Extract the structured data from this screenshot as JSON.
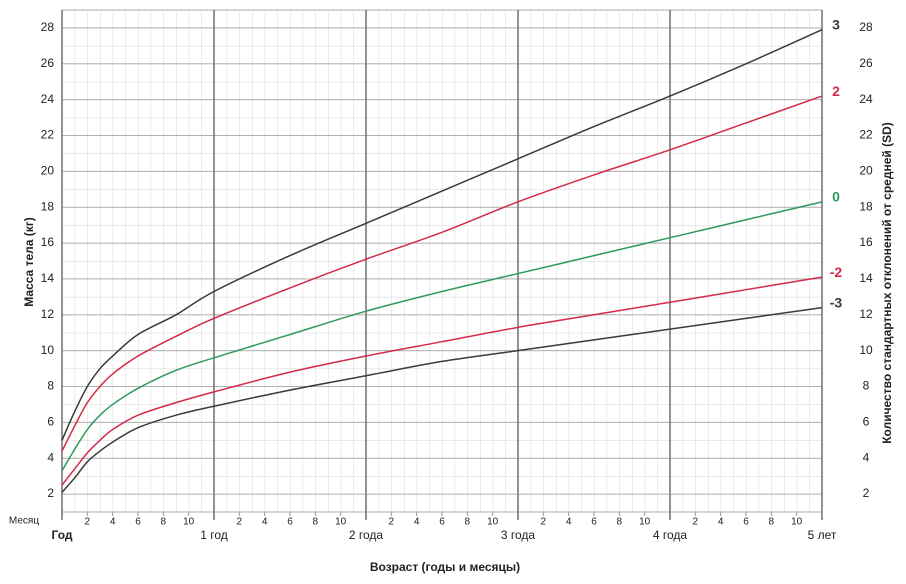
{
  "chart_data": {
    "type": "line",
    "y_label": "Масса тела (кг)",
    "y2_label": "Количество стандартных отклонений от средней (SD)",
    "x_label": "Возраст (годы и месяцы)",
    "x_row_label": "Месяц",
    "xlim": [
      0,
      60
    ],
    "ylim": [
      1,
      29
    ],
    "yticks": [
      2,
      4,
      6,
      8,
      10,
      12,
      14,
      16,
      18,
      20,
      22,
      24,
      26,
      28
    ],
    "xticks": [
      {
        "value": 2,
        "label": "2"
      },
      {
        "value": 4,
        "label": "4"
      },
      {
        "value": 6,
        "label": "6"
      },
      {
        "value": 8,
        "label": "8"
      },
      {
        "value": 10,
        "label": "10"
      },
      {
        "value": 14,
        "label": "2"
      },
      {
        "value": 16,
        "label": "4"
      },
      {
        "value": 18,
        "label": "6"
      },
      {
        "value": 20,
        "label": "8"
      },
      {
        "value": 22,
        "label": "10"
      },
      {
        "value": 26,
        "label": "2"
      },
      {
        "value": 28,
        "label": "4"
      },
      {
        "value": 30,
        "label": "6"
      },
      {
        "value": 32,
        "label": "8"
      },
      {
        "value": 34,
        "label": "10"
      },
      {
        "value": 38,
        "label": "2"
      },
      {
        "value": 40,
        "label": "4"
      },
      {
        "value": 42,
        "label": "6"
      },
      {
        "value": 44,
        "label": "8"
      },
      {
        "value": 46,
        "label": "10"
      },
      {
        "value": 50,
        "label": "2"
      },
      {
        "value": 52,
        "label": "4"
      },
      {
        "value": 54,
        "label": "6"
      },
      {
        "value": 56,
        "label": "8"
      },
      {
        "value": 58,
        "label": "10"
      }
    ],
    "year_ticks": [
      {
        "value": 0,
        "label": "Год"
      },
      {
        "value": 12,
        "label": "1 год"
      },
      {
        "value": 24,
        "label": "2 года"
      },
      {
        "value": 36,
        "label": "3 года"
      },
      {
        "value": 48,
        "label": "4 года"
      },
      {
        "value": 60,
        "label": "5 лет"
      }
    ],
    "grid": true,
    "x": [
      0,
      1,
      2,
      3,
      4,
      6,
      9,
      12,
      18,
      24,
      30,
      36,
      42,
      48,
      54,
      60
    ],
    "series": [
      {
        "name": "3",
        "color": "#3a3a3a",
        "values": [
          5.0,
          6.6,
          8.0,
          9.0,
          9.7,
          10.9,
          12.0,
          13.3,
          15.3,
          17.1,
          18.9,
          20.7,
          22.5,
          24.2,
          26.0,
          27.9
        ]
      },
      {
        "name": "2",
        "color": "#d42a48",
        "values": [
          4.4,
          5.8,
          7.1,
          8.0,
          8.7,
          9.7,
          10.8,
          11.8,
          13.5,
          15.1,
          16.6,
          18.3,
          19.8,
          21.2,
          22.7,
          24.2
        ]
      },
      {
        "name": "0",
        "color": "#2e9a5c",
        "values": [
          3.3,
          4.5,
          5.6,
          6.4,
          7.0,
          7.9,
          8.9,
          9.6,
          10.9,
          12.2,
          13.3,
          14.3,
          15.3,
          16.3,
          17.3,
          18.3
        ]
      },
      {
        "name": "-2",
        "color": "#d42a48",
        "values": [
          2.5,
          3.4,
          4.3,
          5.0,
          5.6,
          6.4,
          7.1,
          7.7,
          8.8,
          9.7,
          10.5,
          11.3,
          12.0,
          12.7,
          13.4,
          14.1
        ]
      },
      {
        "name": "-3",
        "color": "#3a3a3a",
        "values": [
          2.1,
          2.9,
          3.8,
          4.4,
          4.9,
          5.7,
          6.4,
          6.9,
          7.8,
          8.6,
          9.4,
          10.0,
          10.6,
          11.2,
          11.8,
          12.4
        ]
      }
    ]
  }
}
